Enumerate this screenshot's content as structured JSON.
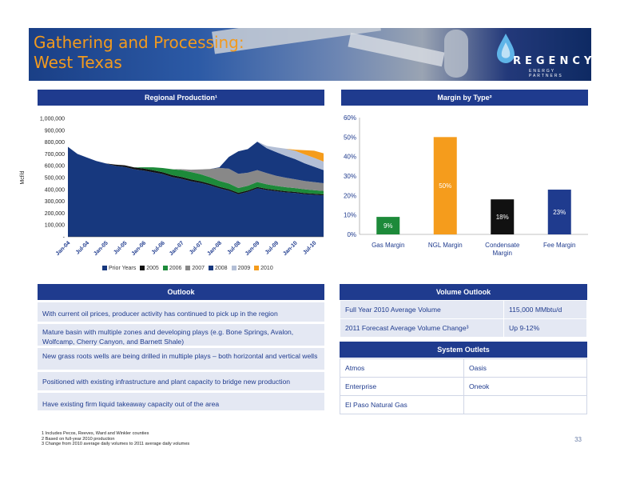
{
  "header": {
    "title_line1": "Gathering and Processing:",
    "title_line2": "West Texas",
    "logo_text": "REGENCY",
    "logo_sub": "ENERGY PARTNERS"
  },
  "regional": {
    "header": "Regional Production¹",
    "chart_data": {
      "type": "area",
      "ylabel": "Mcf/d",
      "ylim": [
        0,
        1000000
      ],
      "yticks": [
        "-",
        "100,000",
        "200,000",
        "300,000",
        "400,000",
        "500,000",
        "600,000",
        "700,000",
        "800,000",
        "900,000",
        "1,000,000"
      ],
      "xticks": [
        "Jan-04",
        "Jul-04",
        "Jan-05",
        "Jul-05",
        "Jan-06",
        "Jul-06",
        "Jan-07",
        "Jul-07",
        "Jan-08",
        "Jul-08",
        "Jan-09",
        "Jul-09",
        "Jan-10",
        "Jul-10"
      ],
      "x": [
        "Jan-04",
        "Apr-04",
        "Jul-04",
        "Oct-04",
        "Jan-05",
        "Apr-05",
        "Jul-05",
        "Oct-05",
        "Jan-06",
        "Apr-06",
        "Jul-06",
        "Oct-06",
        "Jan-07",
        "Apr-07",
        "Jul-07",
        "Oct-07",
        "Jan-08",
        "Apr-08",
        "Jul-08",
        "Oct-08",
        "Jan-09",
        "Apr-09",
        "Jul-09",
        "Oct-09",
        "Jan-10",
        "Apr-10",
        "Jul-10",
        "Oct-10"
      ],
      "series": [
        {
          "name": "Prior Years",
          "color": "#17387e",
          "values": [
            760,
            700,
            670,
            640,
            620,
            600,
            590,
            570,
            560,
            545,
            530,
            505,
            490,
            470,
            455,
            435,
            410,
            390,
            360,
            380,
            410,
            395,
            385,
            375,
            370,
            360,
            355,
            350
          ]
        },
        {
          "name": "2005",
          "color": "#111111",
          "values": [
            0,
            0,
            0,
            0,
            0,
            10,
            14,
            16,
            17,
            17,
            16,
            16,
            15,
            15,
            14,
            13,
            12,
            12,
            12,
            11,
            11,
            10,
            10,
            10,
            9,
            9,
            9,
            9
          ]
        },
        {
          "name": "2006",
          "color": "#1d8a3a",
          "values": [
            0,
            0,
            0,
            0,
            0,
            0,
            0,
            0,
            10,
            25,
            35,
            50,
            58,
            62,
            60,
            55,
            50,
            48,
            40,
            40,
            42,
            38,
            35,
            34,
            32,
            32,
            30,
            29
          ]
        },
        {
          "name": "2007",
          "color": "#888888",
          "values": [
            0,
            0,
            0,
            0,
            0,
            0,
            0,
            0,
            0,
            0,
            0,
            0,
            8,
            20,
            40,
            70,
            110,
            125,
            120,
            110,
            100,
            95,
            85,
            80,
            75,
            70,
            68,
            65
          ]
        },
        {
          "name": "2008",
          "color": "#17387e",
          "values": [
            0,
            0,
            0,
            0,
            0,
            0,
            0,
            0,
            0,
            0,
            0,
            0,
            0,
            0,
            0,
            0,
            5,
            100,
            190,
            200,
            240,
            210,
            200,
            185,
            170,
            150,
            130,
            110
          ]
        },
        {
          "name": "2009",
          "color": "#b3bfd6",
          "values": [
            0,
            0,
            0,
            0,
            0,
            0,
            0,
            0,
            0,
            0,
            0,
            0,
            0,
            0,
            0,
            0,
            0,
            0,
            0,
            0,
            2,
            20,
            40,
            60,
            70,
            75,
            75,
            72
          ]
        },
        {
          "name": "2010",
          "color": "#f59c1c",
          "values": [
            0,
            0,
            0,
            0,
            0,
            0,
            0,
            0,
            0,
            0,
            0,
            0,
            0,
            0,
            0,
            0,
            0,
            0,
            0,
            0,
            0,
            0,
            0,
            0,
            10,
            35,
            60,
            70
          ]
        }
      ],
      "value_unit_note": "values in thousands"
    }
  },
  "margin": {
    "header": "Margin by Type²",
    "chart_data": {
      "type": "bar",
      "categories": [
        "Gas Margin",
        "NGL Margin",
        "Condensate Margin",
        "Fee Margin"
      ],
      "category_lines": [
        [
          "Gas Margin"
        ],
        [
          "NGL Margin"
        ],
        [
          "Condensate",
          "Margin"
        ],
        [
          "Fee Margin"
        ]
      ],
      "values": [
        9,
        50,
        18,
        23
      ],
      "labels": [
        "9%",
        "50%",
        "18%",
        "23%"
      ],
      "colors": [
        "#1d8a3a",
        "#f59c1c",
        "#111111",
        "#1f3b8e"
      ],
      "label_colors": [
        "#ffffff",
        "#ffffff",
        "#ffffff",
        "#ffffff"
      ],
      "ylim": [
        0,
        60
      ],
      "yticks": [
        "0%",
        "10%",
        "20%",
        "30%",
        "40%",
        "50%",
        "60%"
      ]
    }
  },
  "outlook": {
    "header": "Outlook",
    "items": [
      "With current oil prices, producer activity has continued to pick up in the region",
      "Mature basin with multiple zones and developing plays (e.g. Bone Springs, Avalon, Wolfcamp, Cherry Canyon, and Barnett Shale)",
      "New grass roots wells are being drilled in multiple plays – both horizontal and vertical wells",
      "Positioned with existing infrastructure and plant capacity to bridge new production",
      "Have existing firm liquid takeaway capacity out of the area"
    ]
  },
  "volume": {
    "header": "Volume Outlook",
    "rows": [
      {
        "label": "Full Year 2010 Average Volume",
        "value": "115,000 MMbtu/d"
      },
      {
        "label": "2011 Forecast Average Volume Change³",
        "value": "Up 9-12%"
      }
    ]
  },
  "outlets": {
    "header": "System Outlets",
    "rows": [
      [
        "Atmos",
        "Oasis"
      ],
      [
        "Enterprise",
        "Oneok"
      ],
      [
        "El Paso Natural Gas",
        ""
      ]
    ]
  },
  "footnotes": [
    "1   Includes Pecos, Reeves, Ward and Winkler counties",
    "2   Based on full-year 2010 production",
    "3   Change from 2010 average daily volumes to 2011 average daily volumes"
  ],
  "page_number": "33"
}
